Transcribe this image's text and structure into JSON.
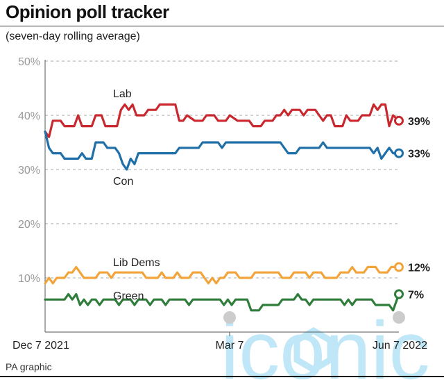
{
  "header": {
    "title": "Opinion poll tracker",
    "subtitle": "(seven-day rolling average)",
    "source": "PA graphic"
  },
  "watermark": {
    "text": "iconic",
    "color": "#bfe7f7"
  },
  "chart_data": {
    "type": "line",
    "ylim": [
      0,
      50
    ],
    "yticks": [
      10,
      20,
      30,
      40,
      50
    ],
    "ytick_labels": [
      "10%",
      "20%",
      "30%",
      "40%",
      "50%"
    ],
    "x_labels": [
      "Dec 7 2021",
      "Mar 7",
      "Jun 7 2022"
    ],
    "grid": true,
    "series": [
      {
        "name": "Lab",
        "color": "#c8282e",
        "end_label": "39%",
        "points": [
          [
            "2021-12-07",
            37
          ],
          [
            "2021-12-09",
            36
          ],
          [
            "2021-12-11",
            39
          ],
          [
            "2021-12-15",
            39
          ],
          [
            "2021-12-17",
            38
          ],
          [
            "2021-12-22",
            38
          ],
          [
            "2021-12-24",
            40
          ],
          [
            "2021-12-26",
            38
          ],
          [
            "2021-12-31",
            38
          ],
          [
            "2022-01-02",
            40
          ],
          [
            "2022-01-05",
            40
          ],
          [
            "2022-01-07",
            38
          ],
          [
            "2022-01-13",
            38
          ],
          [
            "2022-01-15",
            41
          ],
          [
            "2022-01-17",
            42
          ],
          [
            "2022-01-19",
            41
          ],
          [
            "2022-01-21",
            42
          ],
          [
            "2022-01-23",
            40
          ],
          [
            "2022-01-27",
            40
          ],
          [
            "2022-01-29",
            41
          ],
          [
            "2022-02-02",
            41
          ],
          [
            "2022-02-04",
            42
          ],
          [
            "2022-02-12",
            42
          ],
          [
            "2022-02-14",
            39
          ],
          [
            "2022-02-16",
            39
          ],
          [
            "2022-02-18",
            40
          ],
          [
            "2022-02-22",
            39
          ],
          [
            "2022-02-26",
            39
          ],
          [
            "2022-02-28",
            40
          ],
          [
            "2022-03-04",
            40
          ],
          [
            "2022-03-06",
            39
          ],
          [
            "2022-03-10",
            39
          ],
          [
            "2022-03-12",
            40
          ],
          [
            "2022-03-16",
            39
          ],
          [
            "2022-03-22",
            39
          ],
          [
            "2022-03-24",
            38
          ],
          [
            "2022-03-28",
            38
          ],
          [
            "2022-03-30",
            39
          ],
          [
            "2022-04-03",
            39
          ],
          [
            "2022-04-05",
            40
          ],
          [
            "2022-04-07",
            40
          ],
          [
            "2022-04-09",
            41
          ],
          [
            "2022-04-11",
            40
          ],
          [
            "2022-04-13",
            41
          ],
          [
            "2022-04-17",
            41
          ],
          [
            "2022-04-19",
            40
          ],
          [
            "2022-04-21",
            41
          ],
          [
            "2022-04-25",
            41
          ],
          [
            "2022-04-27",
            40
          ],
          [
            "2022-04-29",
            39
          ],
          [
            "2022-05-01",
            40
          ],
          [
            "2022-05-03",
            40
          ],
          [
            "2022-05-05",
            38
          ],
          [
            "2022-05-09",
            38
          ],
          [
            "2022-05-11",
            40
          ],
          [
            "2022-05-13",
            39
          ],
          [
            "2022-05-17",
            39
          ],
          [
            "2022-05-19",
            40
          ],
          [
            "2022-05-23",
            40
          ],
          [
            "2022-05-25",
            42
          ],
          [
            "2022-05-27",
            41
          ],
          [
            "2022-05-29",
            42
          ],
          [
            "2022-05-31",
            42
          ],
          [
            "2022-06-02",
            38
          ],
          [
            "2022-06-04",
            40
          ],
          [
            "2022-06-07",
            39
          ]
        ]
      },
      {
        "name": "Con",
        "color": "#1f6fa8",
        "end_label": "33%",
        "points": [
          [
            "2021-12-07",
            37
          ],
          [
            "2021-12-09",
            34
          ],
          [
            "2021-12-11",
            33
          ],
          [
            "2021-12-15",
            33
          ],
          [
            "2021-12-17",
            32
          ],
          [
            "2021-12-24",
            32
          ],
          [
            "2021-12-26",
            33
          ],
          [
            "2021-12-28",
            32
          ],
          [
            "2021-12-31",
            32
          ],
          [
            "2022-01-02",
            35
          ],
          [
            "2022-01-06",
            35
          ],
          [
            "2022-01-08",
            34
          ],
          [
            "2022-01-12",
            34
          ],
          [
            "2022-01-14",
            33
          ],
          [
            "2022-01-16",
            31
          ],
          [
            "2022-01-18",
            30
          ],
          [
            "2022-01-20",
            32
          ],
          [
            "2022-01-22",
            31
          ],
          [
            "2022-01-24",
            33
          ],
          [
            "2022-01-28",
            33
          ],
          [
            "2022-02-01",
            33
          ],
          [
            "2022-02-12",
            33
          ],
          [
            "2022-02-14",
            34
          ],
          [
            "2022-02-18",
            34
          ],
          [
            "2022-02-20",
            34
          ],
          [
            "2022-02-24",
            34
          ],
          [
            "2022-02-26",
            35
          ],
          [
            "2022-03-06",
            35
          ],
          [
            "2022-03-08",
            34
          ],
          [
            "2022-03-10",
            35
          ],
          [
            "2022-03-16",
            35
          ],
          [
            "2022-04-07",
            35
          ],
          [
            "2022-04-09",
            34
          ],
          [
            "2022-04-11",
            33
          ],
          [
            "2022-04-15",
            33
          ],
          [
            "2022-04-17",
            34
          ],
          [
            "2022-04-27",
            34
          ],
          [
            "2022-04-29",
            35
          ],
          [
            "2022-05-01",
            34
          ],
          [
            "2022-05-15",
            34
          ],
          [
            "2022-05-21",
            34
          ],
          [
            "2022-05-23",
            34
          ],
          [
            "2022-05-25",
            33
          ],
          [
            "2022-05-27",
            34
          ],
          [
            "2022-05-29",
            32
          ],
          [
            "2022-05-31",
            33
          ],
          [
            "2022-06-02",
            34
          ],
          [
            "2022-06-04",
            33
          ],
          [
            "2022-06-07",
            33
          ]
        ]
      },
      {
        "name": "Lib Dems",
        "color": "#f2a33a",
        "end_label": "12%",
        "points": [
          [
            "2021-12-07",
            9
          ],
          [
            "2021-12-09",
            10
          ],
          [
            "2021-12-11",
            9
          ],
          [
            "2021-12-13",
            10
          ],
          [
            "2021-12-17",
            10
          ],
          [
            "2021-12-19",
            11
          ],
          [
            "2021-12-21",
            11
          ],
          [
            "2021-12-23",
            12
          ],
          [
            "2021-12-25",
            11
          ],
          [
            "2021-12-27",
            10
          ],
          [
            "2022-01-02",
            10
          ],
          [
            "2022-01-04",
            11
          ],
          [
            "2022-01-08",
            11
          ],
          [
            "2022-01-10",
            10
          ],
          [
            "2022-01-12",
            11
          ],
          [
            "2022-01-26",
            11
          ],
          [
            "2022-01-28",
            10
          ],
          [
            "2022-02-03",
            10
          ],
          [
            "2022-02-05",
            11
          ],
          [
            "2022-02-07",
            10
          ],
          [
            "2022-02-11",
            10
          ],
          [
            "2022-02-13",
            11
          ],
          [
            "2022-02-15",
            10
          ],
          [
            "2022-02-19",
            10
          ],
          [
            "2022-02-21",
            11
          ],
          [
            "2022-02-25",
            11
          ],
          [
            "2022-02-27",
            10
          ],
          [
            "2022-03-01",
            9
          ],
          [
            "2022-03-03",
            10
          ],
          [
            "2022-03-05",
            9
          ],
          [
            "2022-03-07",
            10
          ],
          [
            "2022-03-09",
            10
          ],
          [
            "2022-03-11",
            11
          ],
          [
            "2022-03-15",
            11
          ],
          [
            "2022-03-17",
            10
          ],
          [
            "2022-03-19",
            10
          ],
          [
            "2022-03-23",
            10
          ],
          [
            "2022-03-25",
            11
          ],
          [
            "2022-04-06",
            11
          ],
          [
            "2022-04-08",
            10
          ],
          [
            "2022-04-12",
            10
          ],
          [
            "2022-04-14",
            11
          ],
          [
            "2022-04-20",
            11
          ],
          [
            "2022-04-22",
            10
          ],
          [
            "2022-04-24",
            11
          ],
          [
            "2022-04-28",
            11
          ],
          [
            "2022-04-30",
            10
          ],
          [
            "2022-05-06",
            10
          ],
          [
            "2022-05-08",
            11
          ],
          [
            "2022-05-12",
            11
          ],
          [
            "2022-05-14",
            12
          ],
          [
            "2022-05-16",
            11
          ],
          [
            "2022-05-20",
            11
          ],
          [
            "2022-05-22",
            12
          ],
          [
            "2022-05-26",
            12
          ],
          [
            "2022-05-28",
            11
          ],
          [
            "2022-06-01",
            11
          ],
          [
            "2022-06-03",
            12
          ],
          [
            "2022-06-07",
            12
          ]
        ]
      },
      {
        "name": "Green",
        "color": "#2f7d3b",
        "end_label": "7%",
        "points": [
          [
            "2021-12-07",
            6
          ],
          [
            "2021-12-17",
            6
          ],
          [
            "2021-12-19",
            7
          ],
          [
            "2021-12-21",
            6
          ],
          [
            "2021-12-23",
            7
          ],
          [
            "2021-12-25",
            5
          ],
          [
            "2021-12-27",
            6
          ],
          [
            "2021-12-29",
            5
          ],
          [
            "2021-12-31",
            6
          ],
          [
            "2022-01-02",
            6
          ],
          [
            "2022-01-04",
            5
          ],
          [
            "2022-01-06",
            6
          ],
          [
            "2022-01-12",
            6
          ],
          [
            "2022-01-14",
            5
          ],
          [
            "2022-01-16",
            6
          ],
          [
            "2022-01-20",
            6
          ],
          [
            "2022-01-22",
            5
          ],
          [
            "2022-01-24",
            6
          ],
          [
            "2022-01-28",
            6
          ],
          [
            "2022-01-30",
            5
          ],
          [
            "2022-02-01",
            6
          ],
          [
            "2022-02-05",
            6
          ],
          [
            "2022-02-07",
            5
          ],
          [
            "2022-02-09",
            6
          ],
          [
            "2022-02-17",
            6
          ],
          [
            "2022-02-19",
            5
          ],
          [
            "2022-02-21",
            6
          ],
          [
            "2022-03-07",
            6
          ],
          [
            "2022-03-09",
            5
          ],
          [
            "2022-03-11",
            6
          ],
          [
            "2022-03-13",
            5
          ],
          [
            "2022-03-15",
            6
          ],
          [
            "2022-03-21",
            6
          ],
          [
            "2022-03-23",
            4
          ],
          [
            "2022-03-27",
            4
          ],
          [
            "2022-03-29",
            5
          ],
          [
            "2022-04-06",
            5
          ],
          [
            "2022-04-08",
            6
          ],
          [
            "2022-04-14",
            6
          ],
          [
            "2022-04-16",
            7
          ],
          [
            "2022-04-18",
            6
          ],
          [
            "2022-04-20",
            6
          ],
          [
            "2022-04-22",
            5
          ],
          [
            "2022-04-24",
            6
          ],
          [
            "2022-05-08",
            6
          ],
          [
            "2022-05-10",
            5
          ],
          [
            "2022-05-12",
            6
          ],
          [
            "2022-05-14",
            5
          ],
          [
            "2022-05-16",
            6
          ],
          [
            "2022-05-24",
            6
          ],
          [
            "2022-05-26",
            5
          ],
          [
            "2022-06-02",
            5
          ],
          [
            "2022-06-04",
            4
          ],
          [
            "2022-06-07",
            7
          ]
        ]
      }
    ]
  }
}
